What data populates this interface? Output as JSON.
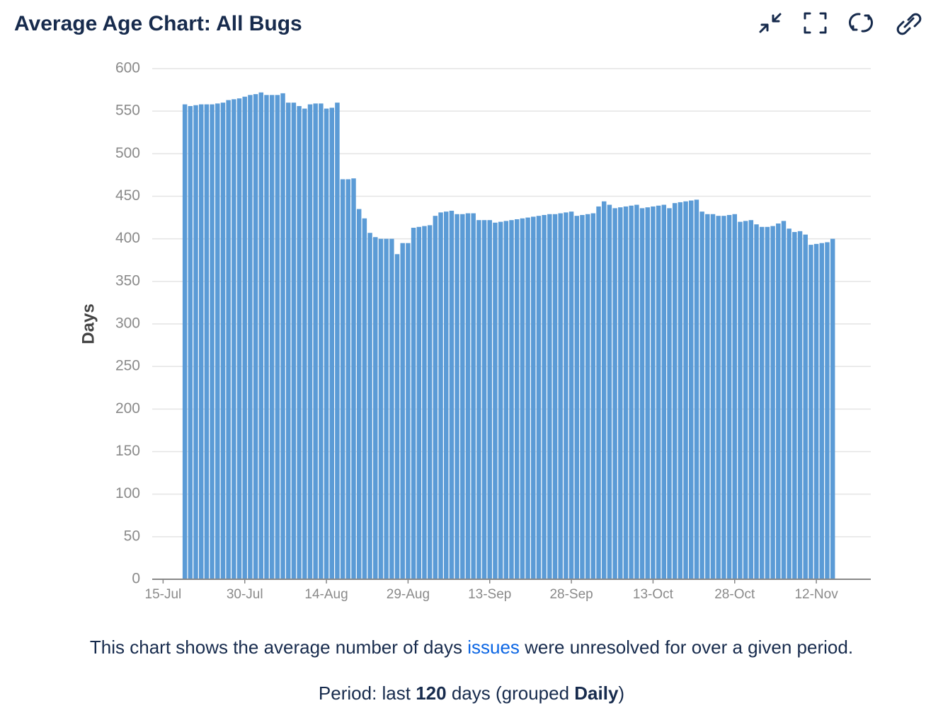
{
  "chart_data": {
    "type": "bar",
    "title": "Average Age Chart: All Bugs",
    "y_label": "Days",
    "color": "#5b9bd6",
    "grid": true,
    "x": [
      "19-Jul",
      "20-Jul",
      "21-Jul",
      "22-Jul",
      "23-Jul",
      "24-Jul",
      "25-Jul",
      "26-Jul",
      "27-Jul",
      "28-Jul",
      "29-Jul",
      "30-Jul",
      "31-Jul",
      "1-Aug",
      "2-Aug",
      "3-Aug",
      "4-Aug",
      "5-Aug",
      "6-Aug",
      "7-Aug",
      "8-Aug",
      "9-Aug",
      "10-Aug",
      "11-Aug",
      "12-Aug",
      "13-Aug",
      "14-Aug",
      "15-Aug",
      "16-Aug",
      "17-Aug",
      "18-Aug",
      "19-Aug",
      "20-Aug",
      "21-Aug",
      "22-Aug",
      "23-Aug",
      "24-Aug",
      "25-Aug",
      "26-Aug",
      "27-Aug",
      "28-Aug",
      "29-Aug",
      "30-Aug",
      "31-Aug",
      "1-Sep",
      "2-Sep",
      "3-Sep",
      "4-Sep",
      "5-Sep",
      "6-Sep",
      "7-Sep",
      "8-Sep",
      "9-Sep",
      "10-Sep",
      "11-Sep",
      "12-Sep",
      "13-Sep",
      "14-Sep",
      "15-Sep",
      "16-Sep",
      "17-Sep",
      "18-Sep",
      "19-Sep",
      "20-Sep",
      "21-Sep",
      "22-Sep",
      "23-Sep",
      "24-Sep",
      "25-Sep",
      "26-Sep",
      "27-Sep",
      "28-Sep",
      "29-Sep",
      "30-Sep",
      "1-Oct",
      "2-Oct",
      "3-Oct",
      "4-Oct",
      "5-Oct",
      "6-Oct",
      "7-Oct",
      "8-Oct",
      "9-Oct",
      "10-Oct",
      "11-Oct",
      "12-Oct",
      "13-Oct",
      "14-Oct",
      "15-Oct",
      "16-Oct",
      "17-Oct",
      "18-Oct",
      "19-Oct",
      "20-Oct",
      "21-Oct",
      "22-Oct",
      "23-Oct",
      "24-Oct",
      "25-Oct",
      "26-Oct",
      "27-Oct",
      "28-Oct",
      "29-Oct",
      "30-Oct",
      "31-Oct",
      "1-Nov",
      "2-Nov",
      "3-Nov",
      "4-Nov",
      "5-Nov",
      "6-Nov",
      "7-Nov",
      "8-Nov",
      "9-Nov",
      "10-Nov",
      "11-Nov",
      "12-Nov",
      "13-Nov",
      "14-Nov",
      "15-Nov"
    ],
    "values": [
      558,
      556,
      557,
      558,
      558,
      558,
      559,
      560,
      563,
      564,
      565,
      567,
      569,
      570,
      572,
      569,
      569,
      569,
      571,
      560,
      560,
      556,
      553,
      558,
      559,
      559,
      553,
      554,
      560,
      470,
      470,
      471,
      435,
      424,
      407,
      402,
      400,
      400,
      400,
      382,
      395,
      395,
      413,
      414,
      415,
      416,
      427,
      431,
      432,
      433,
      429,
      429,
      430,
      430,
      422,
      422,
      422,
      419,
      420,
      421,
      422,
      423,
      424,
      425,
      426,
      427,
      428,
      429,
      429,
      430,
      431,
      432,
      427,
      428,
      429,
      430,
      438,
      444,
      440,
      436,
      437,
      438,
      439,
      440,
      436,
      437,
      438,
      439,
      440,
      436,
      442,
      443,
      444,
      445,
      446,
      432,
      429,
      429,
      427,
      427,
      428,
      429,
      420,
      421,
      422,
      417,
      414,
      414,
      415,
      418,
      421,
      412,
      408,
      409,
      405,
      393,
      394,
      395,
      396,
      400
    ],
    "xlim": [
      "13-Jul",
      "22-Nov"
    ],
    "xticks": [
      "15-Jul",
      "30-Jul",
      "14-Aug",
      "29-Aug",
      "13-Sep",
      "28-Sep",
      "13-Oct",
      "28-Oct",
      "12-Nov"
    ],
    "ylim": [
      0,
      600
    ],
    "yticks": [
      0,
      50,
      100,
      150,
      200,
      250,
      300,
      350,
      400,
      450,
      500,
      550,
      600
    ]
  },
  "footer": {
    "description": [
      "This chart shows the average number of days ",
      "issues",
      " were unresolved for over a given period."
    ],
    "period": [
      "Period: last ",
      "120",
      " days (grouped ",
      "Daily",
      ")"
    ]
  }
}
